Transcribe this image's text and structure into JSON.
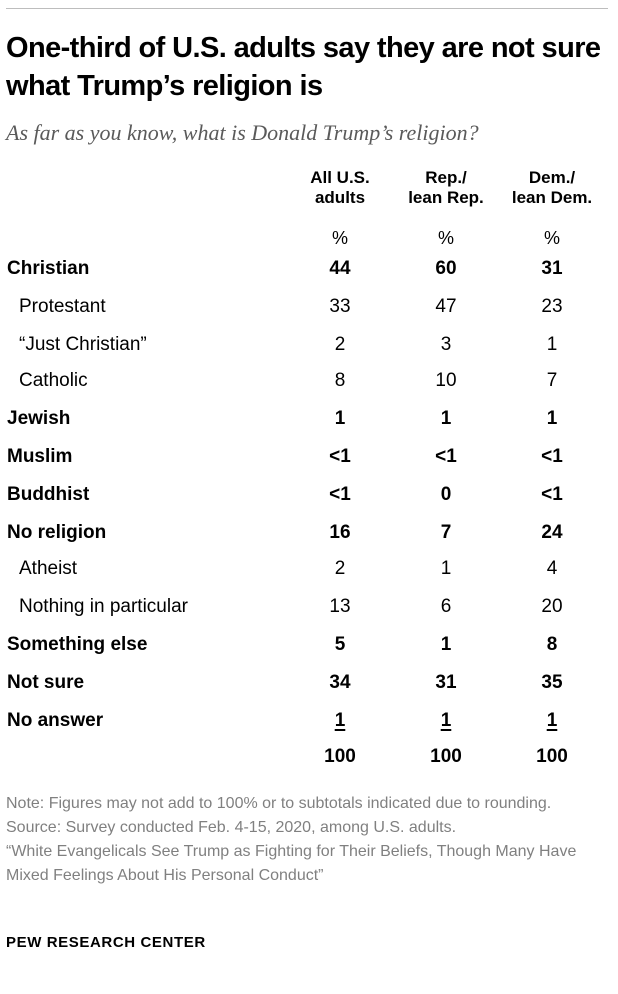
{
  "title": "One-third of U.S. adults say they are not sure what Trump’s religion is",
  "question": "As far as you know, what is Donald Trump’s religion?",
  "columns": [
    {
      "line1": "All U.S.",
      "line2": "adults"
    },
    {
      "line1": "Rep./",
      "line2": "lean Rep."
    },
    {
      "line1": "Dem./",
      "line2": "lean Dem."
    }
  ],
  "unit": "%",
  "rows": [
    {
      "label": "Christian",
      "values": [
        "44",
        "60",
        "31"
      ]
    },
    {
      "label": "Protestant",
      "values": [
        "33",
        "47",
        "23"
      ]
    },
    {
      "label": "“Just Christian”",
      "values": [
        "2",
        "3",
        "1"
      ]
    },
    {
      "label": "Catholic",
      "values": [
        "8",
        "10",
        "7"
      ]
    },
    {
      "label": "Jewish",
      "values": [
        "1",
        "1",
        "1"
      ]
    },
    {
      "label": "Muslim",
      "values": [
        "<1",
        "<1",
        "<1"
      ]
    },
    {
      "label": "Buddhist",
      "values": [
        "<1",
        "0",
        "<1"
      ]
    },
    {
      "label": "No religion",
      "values": [
        "16",
        "7",
        "24"
      ]
    },
    {
      "label": "Atheist",
      "values": [
        "2",
        "1",
        "4"
      ]
    },
    {
      "label": "Nothing in particular",
      "values": [
        "13",
        "6",
        "20"
      ]
    },
    {
      "label": "Something else",
      "values": [
        "5",
        "1",
        "8"
      ]
    },
    {
      "label": "Not sure",
      "values": [
        "34",
        "31",
        "35"
      ]
    },
    {
      "label": "No answer",
      "values": [
        "1",
        "1",
        "1"
      ]
    }
  ],
  "totals": [
    "100",
    "100",
    "100"
  ],
  "note": "Note: Figures may not add to 100% or to subtotals indicated due to rounding.",
  "source": "Source: Survey conducted Feb. 4-15, 2020, among U.S. adults.",
  "report": "“White Evangelicals See Trump as Fighting for Their Beliefs, Though Many Have Mixed Feelings About His Personal Conduct”",
  "organization": "PEW RESEARCH CENTER"
}
